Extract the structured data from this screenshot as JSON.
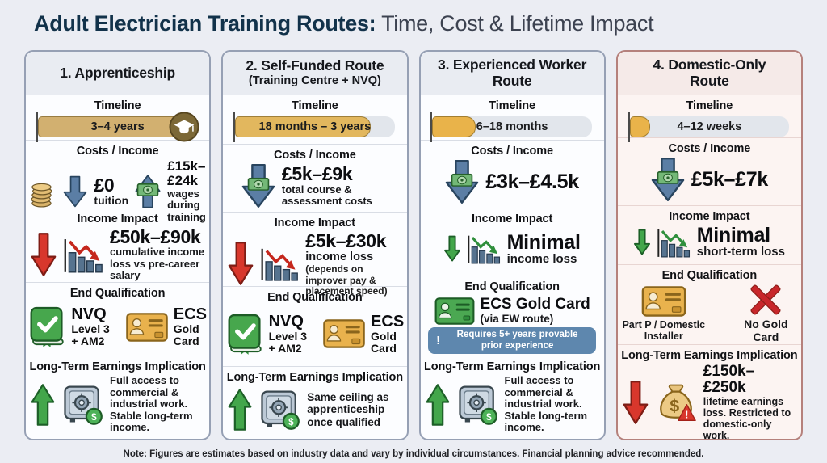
{
  "title": {
    "bold": "Adult Electrician Training Routes:",
    "regular": " Time, Cost & Lifetime Impact"
  },
  "section_labels": {
    "timeline": "Timeline",
    "costs": "Costs / Income",
    "income": "Income Impact",
    "qualification": "End Qualification",
    "longterm": "Long-Term Earnings Implication"
  },
  "footnote": "Note: Figures are estimates based on industry data and vary by individual circumstances. Financial planning advice recommended.",
  "colors": {
    "title_navy": "#12324a",
    "card_border": "#96a0b4",
    "card4_border": "#b5817c",
    "arrow_blue": "#5b7ea5",
    "arrow_red": "#d8372c",
    "arrow_green": "#43a64b",
    "badge_blue": "#5e87ae",
    "gold_card": "#e9b24d",
    "green_card": "#4ba852",
    "x_red": "#c8272b"
  },
  "columns": [
    {
      "title": "1. Apprenticeship",
      "timeline": {
        "label": "3–4 years",
        "fill_pct": 100,
        "bar_color": "#d2b070",
        "end_icon": "graduation-cap"
      },
      "costs": [
        {
          "value": "£0",
          "label": "tuition"
        },
        {
          "value": "£15k–£24k",
          "label": "wages during training"
        }
      ],
      "income": {
        "value": "£50k–£90k",
        "label": "cumulative income loss vs pre-career salary"
      },
      "qualification": {
        "items": [
          {
            "icon": "green-book-check",
            "lines": [
              "NVQ",
              "Level 3",
              "+ AM2"
            ]
          },
          {
            "icon": "gold-id-card",
            "lines": [
              "ECS",
              "Gold",
              "Card"
            ]
          }
        ]
      },
      "longterm": {
        "text": "Full access to commercial & industrial work. Stable long-term income."
      }
    },
    {
      "title": "2. Self-Funded Route",
      "subtitle": "(Training Centre + NVQ)",
      "timeline": {
        "label": "18 months – 3 years",
        "fill_pct": 85,
        "bar_color": "#e2b75e"
      },
      "costs": [
        {
          "value": "£5k–£9k",
          "label": "total course & assessment costs"
        }
      ],
      "income": {
        "value": "£5k–£30k",
        "label": "income loss",
        "sublabel": "(depends on improver pay & placement speed)"
      },
      "qualification": {
        "items": [
          {
            "icon": "green-book-check",
            "lines": [
              "NVQ",
              "Level 3",
              "+ AM2"
            ]
          },
          {
            "icon": "gold-id-card",
            "lines": [
              "ECS",
              "Gold",
              "Card"
            ]
          }
        ]
      },
      "longterm": {
        "text": "Same ceiling as apprenticeship once qualified"
      }
    },
    {
      "title": "3. Experienced Worker Route",
      "timeline": {
        "label": "6–18 months",
        "fill_pct": 27,
        "bar_color": "#e9b34a"
      },
      "costs": [
        {
          "value": "£3k–£4.5k",
          "label": ""
        }
      ],
      "income": {
        "value": "Minimal",
        "label": "income loss"
      },
      "qualification": {
        "card_title": "ECS Gold Card",
        "card_subtitle": "(via EW route)",
        "badge_icon": "!",
        "badge_text": "Requires 5+ years provable prior experience"
      },
      "longterm": {
        "text": "Full access to commercial & industrial work. Stable long-term income."
      }
    },
    {
      "title": "4. Domestic-Only Route",
      "timeline": {
        "label": "4–12 weeks",
        "fill_pct": 13,
        "bar_color": "#e9b34a"
      },
      "costs": [
        {
          "value": "£5k–£7k",
          "label": ""
        }
      ],
      "income": {
        "value": "Minimal",
        "label": "short-term loss"
      },
      "qualification": {
        "items": [
          {
            "icon": "gold-id-card",
            "label": "Part P / Domestic Installer"
          },
          {
            "icon": "red-x",
            "label": "No Gold Card"
          }
        ]
      },
      "longterm": {
        "value": "£150k–£250k",
        "text": "lifetime earnings loss. Restricted to domestic-only work."
      }
    }
  ]
}
